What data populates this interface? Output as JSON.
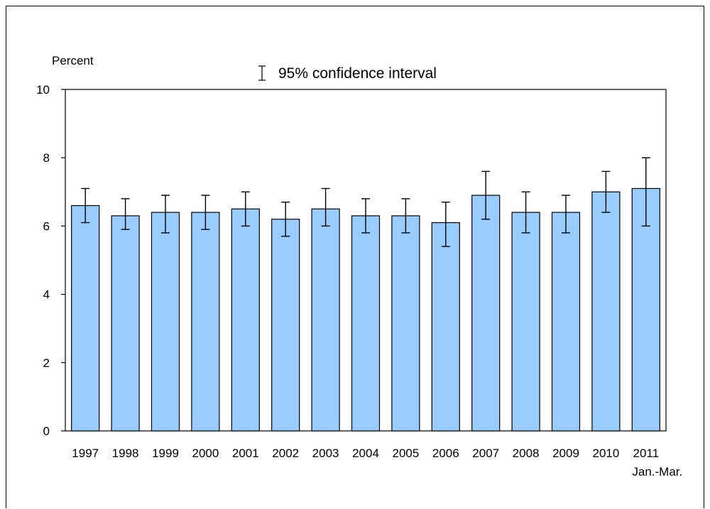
{
  "chart_data": {
    "type": "bar",
    "ylabel": "Percent",
    "legend": {
      "label": "95% confidence interval",
      "placement": "top-center"
    },
    "categories": [
      {
        "line1": "1997",
        "line2": ""
      },
      {
        "line1": "1998",
        "line2": ""
      },
      {
        "line1": "1999",
        "line2": ""
      },
      {
        "line1": "2000",
        "line2": ""
      },
      {
        "line1": "2001",
        "line2": ""
      },
      {
        "line1": "2002",
        "line2": ""
      },
      {
        "line1": "2003",
        "line2": ""
      },
      {
        "line1": "2004",
        "line2": ""
      },
      {
        "line1": "2005",
        "line2": ""
      },
      {
        "line1": "2006",
        "line2": ""
      },
      {
        "line1": "2007",
        "line2": ""
      },
      {
        "line1": "2008",
        "line2": ""
      },
      {
        "line1": "2009",
        "line2": ""
      },
      {
        "line1": "2010",
        "line2": ""
      },
      {
        "line1": "2011",
        "line2": "Jan.-Mar."
      }
    ],
    "values": [
      6.6,
      6.3,
      6.4,
      6.4,
      6.5,
      6.2,
      6.5,
      6.3,
      6.3,
      6.1,
      6.9,
      6.4,
      6.4,
      7.0,
      7.1
    ],
    "ci_lower": [
      6.1,
      5.9,
      5.8,
      5.9,
      6.0,
      5.7,
      6.0,
      5.8,
      5.8,
      5.4,
      6.2,
      5.8,
      5.8,
      6.4,
      6.0
    ],
    "ci_upper": [
      7.1,
      6.8,
      6.9,
      6.9,
      7.0,
      6.7,
      7.1,
      6.8,
      6.8,
      6.7,
      7.6,
      7.0,
      6.9,
      7.6,
      8.0
    ],
    "ylim": [
      0,
      10
    ],
    "yticks": [
      "0",
      "2",
      "4",
      "6",
      "8",
      "10"
    ],
    "grid": false,
    "bar_color": "#99CCFF",
    "bar_edge_color": "#000000"
  }
}
